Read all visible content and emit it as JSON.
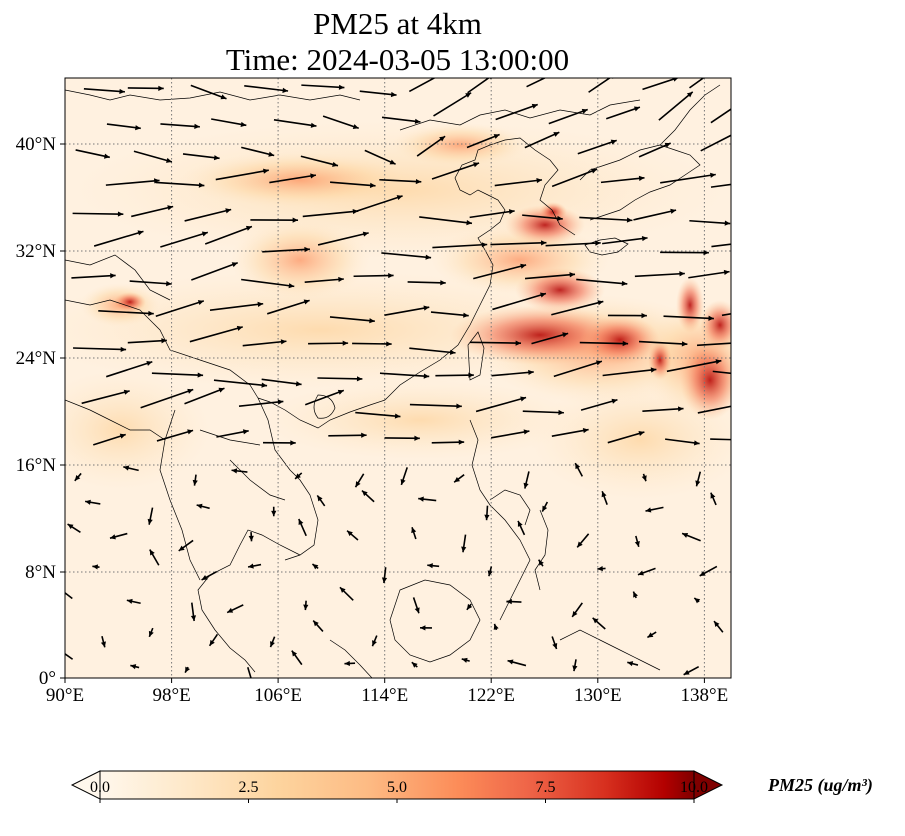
{
  "title_line1": "PM25 at 4km",
  "title_line2": "Time: 2024-03-05 13:00:00",
  "lat_ticks": [
    "0°",
    "8°N",
    "16°N",
    "24°N",
    "32°N",
    "40°N"
  ],
  "lon_ticks": [
    "90°E",
    "98°E",
    "106°E",
    "114°E",
    "122°E",
    "130°E",
    "138°E"
  ],
  "colorbar": {
    "label": "PM25 (ug/m³)",
    "ticks": [
      "0.0",
      "2.5",
      "5.0",
      "7.5",
      "10.0"
    ],
    "min": 0,
    "max": 10,
    "colormap": "OrRd",
    "extend": "both"
  },
  "map": {
    "projection": "PlateCarree",
    "lon_range": [
      90,
      140
    ],
    "lat_range": [
      0,
      45
    ],
    "gridlines": "dotted",
    "coastlines": true,
    "borders": true,
    "wind_vectors": true,
    "colors": {
      "low": "#fff7ec",
      "mid": "#fc8d59",
      "high": "#7f0000"
    }
  }
}
